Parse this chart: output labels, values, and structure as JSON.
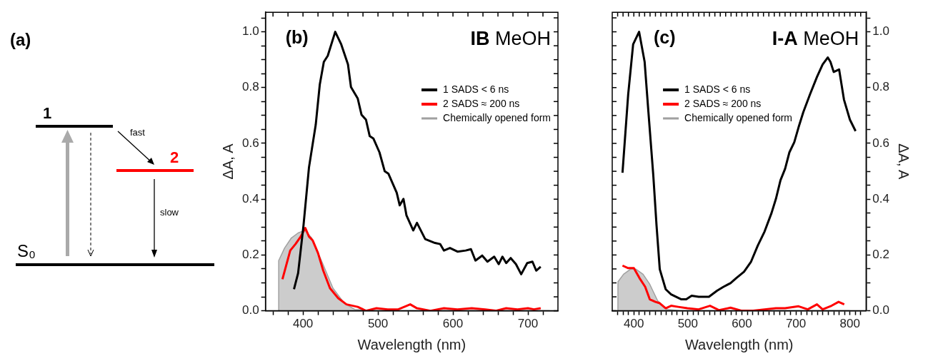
{
  "chart_data": [
    {
      "type": "other",
      "title": "(a)",
      "annotations": [
        "1",
        "2",
        "S₀",
        "fast",
        "slow"
      ]
    },
    {
      "type": "line",
      "title": "(b)",
      "subtitle": "IB MeOH",
      "xlabel": "Wavelength (nm)",
      "ylabel": "ΔA, A",
      "legend": "top right",
      "marker": "none",
      "xlim": [
        350,
        740
      ],
      "ylim": [
        0,
        1.07
      ],
      "xticks": [
        {
          "value": 360,
          "label": null
        },
        {
          "value": 380,
          "label": null
        },
        400,
        {
          "value": 420,
          "label": null
        },
        {
          "value": 440,
          "label": null
        },
        {
          "value": 460,
          "label": null
        },
        {
          "value": 480,
          "label": null
        },
        500,
        {
          "value": 520,
          "label": null
        },
        {
          "value": 540,
          "label": null
        },
        {
          "value": 560,
          "label": null
        },
        {
          "value": 580,
          "label": null
        },
        600,
        {
          "value": 620,
          "label": null
        },
        {
          "value": 640,
          "label": null
        },
        {
          "value": 660,
          "label": null
        },
        {
          "value": 680,
          "label": null
        },
        700,
        {
          "value": 720,
          "label": null
        }
      ],
      "yticks": [
        {
          "value": 0,
          "label": "0.0"
        },
        {
          "value": 0.05,
          "label": null
        },
        {
          "value": 0.1,
          "label": null
        },
        {
          "value": 0.15,
          "label": null
        },
        {
          "value": 0.2,
          "label": "0.2"
        },
        {
          "value": 0.25,
          "label": null
        },
        {
          "value": 0.3,
          "label": null
        },
        {
          "value": 0.35,
          "label": null
        },
        {
          "value": 0.4,
          "label": "0.4"
        },
        {
          "value": 0.45,
          "label": null
        },
        {
          "value": 0.5,
          "label": null
        },
        {
          "value": 0.55,
          "label": null
        },
        {
          "value": 0.6,
          "label": "0.6"
        },
        {
          "value": 0.65,
          "label": null
        },
        {
          "value": 0.7,
          "label": null
        },
        {
          "value": 0.75,
          "label": null
        },
        {
          "value": 0.8,
          "label": "0.8"
        },
        {
          "value": 0.85,
          "label": null
        },
        {
          "value": 0.9,
          "label": null
        },
        {
          "value": 0.95,
          "label": null
        },
        {
          "value": 1,
          "label": "1.0"
        },
        {
          "value": 1.05,
          "label": null
        }
      ],
      "series": [
        {
          "name": "1 SADS < 6 ns",
          "color": "#000000",
          "type": "line",
          "x": [
            388,
            393.5,
            400.7,
            408,
            417,
            422.4,
            427.8,
            433,
            443,
            451,
            460,
            464,
            473,
            478,
            484,
            489,
            494,
            502,
            509,
            514,
            525,
            529,
            534,
            538,
            547,
            552,
            563,
            576,
            583,
            588,
            596,
            606,
            617,
            624,
            630,
            639,
            646,
            655,
            661,
            666,
            671,
            677,
            684,
            691,
            699,
            706,
            711,
            717
          ],
          "values": [
            0.077,
            0.135,
            0.306,
            0.514,
            0.667,
            0.811,
            0.892,
            0.914,
            1.0,
            0.955,
            0.883,
            0.802,
            0.761,
            0.703,
            0.685,
            0.626,
            0.617,
            0.568,
            0.5,
            0.491,
            0.423,
            0.378,
            0.401,
            0.342,
            0.288,
            0.315,
            0.257,
            0.243,
            0.239,
            0.216,
            0.225,
            0.212,
            0.216,
            0.221,
            0.18,
            0.198,
            0.176,
            0.194,
            0.167,
            0.194,
            0.171,
            0.189,
            0.167,
            0.131,
            0.171,
            0.176,
            0.144,
            0.158
          ]
        },
        {
          "name": "2 SADS ≈ 200 ns",
          "color": "#ff0000",
          "type": "line",
          "x": [
            372.6,
            383,
            390,
            397,
            403,
            408,
            413,
            420,
            427,
            436,
            447,
            458,
            473,
            484,
            498,
            513,
            527,
            543,
            552,
            570,
            588,
            606,
            625,
            643,
            657,
            671,
            686,
            700,
            708,
            717
          ],
          "values": [
            0.113,
            0.216,
            0.239,
            0.266,
            0.297,
            0.266,
            0.252,
            0.207,
            0.144,
            0.081,
            0.045,
            0.023,
            0.014,
            0,
            0.009,
            0.005,
            0.005,
            0.023,
            0.009,
            0,
            0.009,
            0.005,
            0.009,
            0.005,
            0,
            0.009,
            0.005,
            0.009,
            0.005,
            0.009
          ]
        },
        {
          "name": "Chemically opened form",
          "color": "#a0a0a0",
          "type": "area",
          "x": [
            367.5,
            367.6,
            375.5,
            384.5,
            393.5,
            402.5,
            411.6,
            426,
            440,
            455,
            469,
            498,
            729
          ],
          "values": [
            0,
            0.18,
            0.225,
            0.261,
            0.279,
            0.288,
            0.261,
            0.171,
            0.081,
            0.027,
            0.005,
            0,
            0
          ]
        }
      ]
    },
    {
      "type": "line",
      "title": "(c)",
      "subtitle": "I-A MeOH",
      "xlabel": "Wavelength (nm)",
      "y2label": "ΔA, A",
      "legend": "top",
      "marker": "none",
      "xlim": [
        360,
        830
      ],
      "y2lim": [
        0,
        1.07
      ],
      "xticks": [
        {
          "value": 370,
          "label": null
        },
        {
          "value": 380,
          "label": null
        },
        {
          "value": 390,
          "label": null
        },
        400,
        {
          "value": 410,
          "label": null
        },
        {
          "value": 420,
          "label": null
        },
        {
          "value": 430,
          "label": null
        },
        {
          "value": 440,
          "label": null
        },
        {
          "value": 450,
          "label": null
        },
        {
          "value": 460,
          "label": null
        },
        {
          "value": 470,
          "label": null
        },
        {
          "value": 480,
          "label": null
        },
        {
          "value": 490,
          "label": null
        },
        500,
        {
          "value": 510,
          "label": null
        },
        {
          "value": 520,
          "label": null
        },
        {
          "value": 530,
          "label": null
        },
        {
          "value": 540,
          "label": null
        },
        {
          "value": 550,
          "label": null
        },
        {
          "value": 560,
          "label": null
        },
        {
          "value": 570,
          "label": null
        },
        {
          "value": 580,
          "label": null
        },
        {
          "value": 590,
          "label": null
        },
        600,
        {
          "value": 610,
          "label": null
        },
        {
          "value": 620,
          "label": null
        },
        {
          "value": 630,
          "label": null
        },
        {
          "value": 640,
          "label": null
        },
        {
          "value": 650,
          "label": null
        },
        {
          "value": 660,
          "label": null
        },
        {
          "value": 670,
          "label": null
        },
        {
          "value": 680,
          "label": null
        },
        {
          "value": 690,
          "label": null
        },
        700,
        {
          "value": 710,
          "label": null
        },
        {
          "value": 720,
          "label": null
        },
        {
          "value": 730,
          "label": null
        },
        {
          "value": 740,
          "label": null
        },
        {
          "value": 750,
          "label": null
        },
        {
          "value": 760,
          "label": null
        },
        {
          "value": 770,
          "label": null
        },
        {
          "value": 780,
          "label": null
        },
        {
          "value": 790,
          "label": null
        },
        800,
        {
          "value": 810,
          "label": null
        },
        {
          "value": 820,
          "label": null
        }
      ],
      "y2ticks": [
        {
          "value": 0,
          "label": "0.0"
        },
        {
          "value": 0.05,
          "label": null
        },
        {
          "value": 0.1,
          "label": null
        },
        {
          "value": 0.15,
          "label": null
        },
        {
          "value": 0.2,
          "label": "0.2"
        },
        {
          "value": 0.25,
          "label": null
        },
        {
          "value": 0.3,
          "label": null
        },
        {
          "value": 0.35,
          "label": null
        },
        {
          "value": 0.4,
          "label": "0.4"
        },
        {
          "value": 0.45,
          "label": null
        },
        {
          "value": 0.5,
          "label": null
        },
        {
          "value": 0.55,
          "label": null
        },
        {
          "value": 0.6,
          "label": "0.6"
        },
        {
          "value": 0.65,
          "label": null
        },
        {
          "value": 0.7,
          "label": null
        },
        {
          "value": 0.75,
          "label": null
        },
        {
          "value": 0.8,
          "label": "0.8"
        },
        {
          "value": 0.85,
          "label": null
        },
        {
          "value": 0.9,
          "label": null
        },
        {
          "value": 0.95,
          "label": null
        },
        {
          "value": 1,
          "label": "1.0"
        },
        {
          "value": 1.05,
          "label": null
        }
      ],
      "series": [
        {
          "name": "1 SADS < 6 ns",
          "color": "#000000",
          "type": "line",
          "axis": "y2",
          "x": [
            379,
            389.5,
            398.7,
            409.7,
            420,
            427,
            436,
            442,
            448,
            459,
            469,
            488,
            497,
            507,
            520,
            539,
            554,
            566,
            579,
            589.5,
            604,
            617,
            629.5,
            642,
            655,
            663,
            671.5,
            680,
            688,
            697,
            705,
            713.7,
            726,
            739,
            749.5,
            759,
            764,
            770,
            780,
            789,
            800,
            810.5
          ],
          "values": [
            0.495,
            0.775,
            0.955,
            1.0,
            0.892,
            0.712,
            0.486,
            0.306,
            0.149,
            0.077,
            0.059,
            0.041,
            0.041,
            0.054,
            0.05,
            0.05,
            0.072,
            0.086,
            0.099,
            0.117,
            0.14,
            0.176,
            0.234,
            0.284,
            0.351,
            0.401,
            0.468,
            0.509,
            0.568,
            0.604,
            0.658,
            0.712,
            0.775,
            0.838,
            0.883,
            0.908,
            0.892,
            0.856,
            0.865,
            0.757,
            0.685,
            0.644
          ]
        },
        {
          "name": "2 SADS ≈ 200 ns",
          "color": "#ff0000",
          "type": "line",
          "axis": "y2",
          "x": [
            379,
            389.5,
            400,
            410.5,
            421,
            429.5,
            440,
            448,
            459,
            469,
            482,
            499,
            520,
            541,
            558,
            579,
            600,
            621,
            642,
            663,
            680,
            705,
            722,
            739,
            749.5,
            766,
            779,
            789.5
          ],
          "values": [
            0.162,
            0.153,
            0.153,
            0.117,
            0.086,
            0.041,
            0.032,
            0.027,
            0.009,
            0.018,
            0.014,
            0.009,
            0.005,
            0.018,
            0.002,
            0.011,
            0,
            0,
            0.005,
            0.009,
            0.009,
            0.016,
            0.005,
            0.023,
            0.005,
            0.018,
            0.032,
            0.023
          ]
        },
        {
          "name": "Chemically opened form",
          "color": "#a0a0a0",
          "type": "area",
          "axis": "y2",
          "x": [
            370.5,
            370.6,
            381,
            393.7,
            404,
            417,
            429.5,
            444,
            461,
            486,
            800
          ],
          "values": [
            0,
            0.104,
            0.131,
            0.149,
            0.149,
            0.131,
            0.095,
            0.036,
            0.005,
            0,
            0
          ]
        }
      ]
    }
  ]
}
